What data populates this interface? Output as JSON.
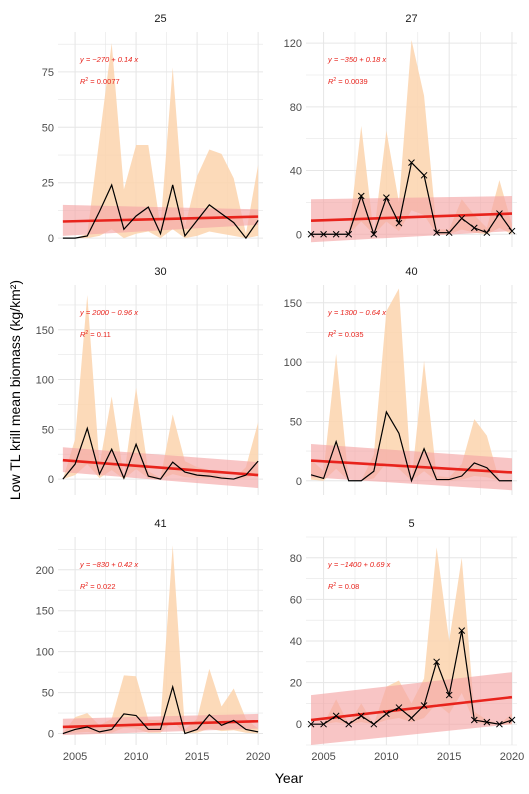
{
  "figure": {
    "ylabel": "Low TL krill mean biomass (kg/km²)",
    "xlabel": "Year",
    "colors": {
      "line": "#000000",
      "trend": "#e8231c",
      "trend_band": "#f4a6a6",
      "range_band": "#fbd3ad",
      "grid": "#e6e6e6",
      "axis_text": "#4d4d4d"
    }
  },
  "chart_data": [
    {
      "type": "line",
      "title": "25",
      "equation": "y = −270 + 0.14 x",
      "r2_label": "R",
      "r2_value": "= 0.0077",
      "x": [
        2004,
        2005,
        2006,
        2007,
        2008,
        2009,
        2010,
        2011,
        2012,
        2013,
        2014,
        2015,
        2016,
        2017,
        2018,
        2019,
        2020
      ],
      "values": [
        0,
        0,
        1,
        12,
        24,
        4,
        10,
        14,
        2,
        24,
        1,
        8,
        15,
        11,
        7,
        0,
        8
      ],
      "band_low": [
        0,
        0,
        0,
        1,
        4,
        0,
        2,
        3,
        0,
        4,
        0,
        1,
        3,
        2,
        1,
        0,
        1
      ],
      "band_high": [
        0,
        0,
        2,
        45,
        88,
        22,
        42,
        42,
        5,
        77,
        5,
        28,
        40,
        38,
        27,
        2,
        33
      ],
      "trend": [
        7.5,
        9.7
      ],
      "trend_band_low": [
        1,
        6
      ],
      "trend_band_high": [
        15,
        13
      ],
      "markers": false,
      "ylim": [
        -4,
        93
      ],
      "yticks": [
        0,
        25,
        50,
        75
      ],
      "xlim": [
        2003.6,
        2020.4
      ],
      "xticks": [
        2005,
        2010,
        2015,
        2020
      ],
      "show_xticks": false
    },
    {
      "type": "line",
      "title": "27",
      "equation": "y = −350 + 0.18 x",
      "r2_label": "R",
      "r2_value": "= 0.0039",
      "x": [
        2004,
        2005,
        2006,
        2007,
        2008,
        2009,
        2010,
        2011,
        2012,
        2013,
        2014,
        2015,
        2016,
        2017,
        2018,
        2019,
        2020
      ],
      "values": [
        0,
        0,
        0,
        0,
        24,
        0,
        23,
        7,
        45,
        37,
        1,
        1,
        10,
        4,
        1,
        13,
        2
      ],
      "band_low": [
        0,
        0,
        0,
        0,
        8,
        0,
        8,
        2,
        15,
        12,
        0,
        0,
        3,
        1,
        0,
        4,
        0
      ],
      "band_high": [
        0,
        0,
        0,
        0,
        68,
        0,
        65,
        20,
        122,
        87,
        3,
        3,
        22,
        12,
        4,
        34,
        6
      ],
      "trend": [
        8.5,
        13
      ],
      "trend_band_low": [
        -5,
        2
      ],
      "trend_band_high": [
        22,
        24
      ],
      "markers": true,
      "ylim": [
        -8,
        127
      ],
      "yticks": [
        0,
        40,
        80,
        120
      ],
      "xlim": [
        2003.6,
        2020.4
      ],
      "xticks": [
        2005,
        2010,
        2015,
        2020
      ],
      "show_xticks": false
    },
    {
      "type": "line",
      "title": "30",
      "equation": "y = 2000 − 0.96 x",
      "r2_label": "R",
      "r2_value": "= 0.11",
      "x": [
        2004,
        2005,
        2006,
        2007,
        2008,
        2009,
        2010,
        2011,
        2012,
        2013,
        2014,
        2015,
        2016,
        2017,
        2018,
        2019,
        2020
      ],
      "values": [
        0,
        15,
        51,
        5,
        30,
        1,
        35,
        3,
        0,
        17,
        7,
        4,
        3,
        1,
        0,
        4,
        18
      ],
      "band_low": [
        0,
        4,
        15,
        1,
        9,
        0,
        10,
        1,
        0,
        5,
        2,
        1,
        1,
        0,
        0,
        1,
        5
      ],
      "band_high": [
        0,
        40,
        185,
        14,
        83,
        2,
        92,
        8,
        1,
        65,
        18,
        12,
        9,
        3,
        0,
        12,
        57
      ],
      "trend": [
        19,
        4
      ],
      "trend_band_low": [
        7,
        -9
      ],
      "trend_band_high": [
        32,
        17
      ],
      "markers": false,
      "ylim": [
        -16,
        195
      ],
      "yticks": [
        0,
        50,
        100,
        150
      ],
      "xlim": [
        2003.6,
        2020.4
      ],
      "xticks": [
        2005,
        2010,
        2015,
        2020
      ],
      "show_xticks": false
    },
    {
      "type": "line",
      "title": "40",
      "equation": "y = 1300 − 0.64 x",
      "r2_label": "R",
      "r2_value": "= 0.035",
      "x": [
        2004,
        2005,
        2006,
        2007,
        2008,
        2009,
        2010,
        2011,
        2012,
        2013,
        2014,
        2015,
        2016,
        2017,
        2018,
        2019,
        2020
      ],
      "values": [
        5,
        2,
        33,
        0,
        0,
        8,
        58,
        40,
        0,
        27,
        1,
        1,
        4,
        15,
        11,
        0,
        0
      ],
      "band_low": [
        1,
        0,
        10,
        0,
        0,
        2,
        15,
        10,
        0,
        8,
        0,
        0,
        1,
        4,
        3,
        0,
        0
      ],
      "band_high": [
        18,
        8,
        107,
        0,
        0,
        22,
        143,
        162,
        0,
        101,
        4,
        3,
        14,
        52,
        38,
        0,
        0
      ],
      "trend": [
        17,
        7
      ],
      "trend_band_low": [
        3,
        -8
      ],
      "trend_band_high": [
        31,
        19
      ],
      "markers": false,
      "ylim": [
        -12,
        165
      ],
      "yticks": [
        0,
        50,
        100,
        150
      ],
      "xlim": [
        2003.6,
        2020.4
      ],
      "xticks": [
        2005,
        2010,
        2015,
        2020
      ],
      "show_xticks": false
    },
    {
      "type": "line",
      "title": "41",
      "equation": "y = −830 + 0.42 x",
      "r2_label": "R",
      "r2_value": "= 0.022",
      "x": [
        2004,
        2005,
        2006,
        2007,
        2008,
        2009,
        2010,
        2011,
        2012,
        2013,
        2014,
        2015,
        2016,
        2017,
        2018,
        2019,
        2020
      ],
      "values": [
        0,
        5,
        8,
        2,
        5,
        24,
        22,
        5,
        5,
        57,
        0,
        5,
        23,
        10,
        16,
        5,
        2
      ],
      "band_low": [
        0,
        1,
        2,
        0,
        1,
        7,
        6,
        1,
        1,
        15,
        0,
        1,
        6,
        3,
        4,
        1,
        0
      ],
      "band_high": [
        0,
        20,
        25,
        10,
        18,
        71,
        70,
        17,
        16,
        230,
        5,
        18,
        79,
        33,
        55,
        18,
        6
      ],
      "trend": [
        8,
        15
      ],
      "trend_band_low": [
        -2,
        6
      ],
      "trend_band_high": [
        18,
        24
      ],
      "markers": false,
      "ylim": [
        -14,
        240
      ],
      "yticks": [
        0,
        50,
        100,
        150,
        200
      ],
      "xlim": [
        2003.6,
        2020.4
      ],
      "xticks": [
        2005,
        2010,
        2015,
        2020
      ],
      "show_xticks": true
    },
    {
      "type": "line",
      "title": "5",
      "equation": "y = −1400 + 0.69 x",
      "r2_label": "R",
      "r2_value": "= 0.08",
      "x": [
        2004,
        2005,
        2006,
        2007,
        2008,
        2009,
        2010,
        2011,
        2012,
        2013,
        2014,
        2015,
        2016,
        2017,
        2018,
        2019,
        2020
      ],
      "values": [
        0,
        0,
        4,
        0,
        4,
        0,
        5,
        8,
        3,
        9,
        30,
        14,
        45,
        2,
        1,
        0,
        2
      ],
      "band_low": [
        0,
        0,
        1,
        0,
        1,
        0,
        2,
        3,
        1,
        3,
        10,
        5,
        15,
        1,
        0,
        0,
        0
      ],
      "band_high": [
        0,
        0,
        12,
        0,
        10,
        0,
        18,
        21,
        10,
        22,
        85,
        40,
        80,
        6,
        2,
        0,
        5
      ],
      "trend": [
        2,
        13
      ],
      "trend_band_low": [
        -10,
        0
      ],
      "trend_band_high": [
        14,
        25
      ],
      "markers": true,
      "ylim": [
        -10,
        90
      ],
      "yticks": [
        0,
        20,
        40,
        60,
        80
      ],
      "xlim": [
        2003.6,
        2020.4
      ],
      "xticks": [
        2005,
        2010,
        2015,
        2020
      ],
      "show_xticks": true
    }
  ]
}
